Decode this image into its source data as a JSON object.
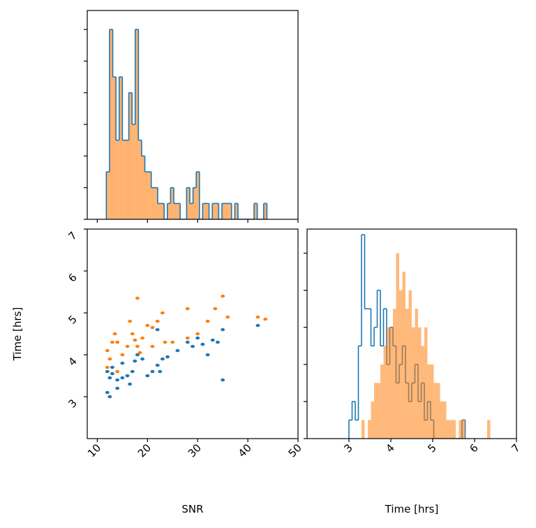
{
  "chart_data": [
    {
      "type": "histogram",
      "bins": [
        11.8,
        12.44,
        13.08,
        13.72,
        14.36,
        15.0,
        15.64,
        16.28,
        16.92,
        17.56,
        18.2,
        18.84,
        19.48,
        20.12,
        20.76,
        21.4,
        22.04,
        22.68,
        23.32,
        23.96,
        24.6,
        25.24,
        25.88,
        26.52,
        27.16,
        27.8,
        28.44,
        29.08,
        29.72,
        30.36,
        31.0,
        31.64,
        32.28,
        32.92,
        33.56,
        34.2,
        34.84,
        35.48,
        36.12,
        36.76,
        37.4,
        38.04,
        38.68,
        39.32,
        39.96,
        40.6,
        41.24,
        41.88,
        42.52,
        43.16,
        43.8
      ],
      "series": [
        {
          "color": "#ffb26e",
          "edgecolor": "#1f77b4",
          "values": [
            3,
            12,
            9,
            5,
            9,
            5,
            5,
            8,
            6,
            12,
            5,
            4,
            3,
            3,
            2,
            2,
            1,
            1,
            0,
            1,
            2,
            1,
            1,
            0,
            0,
            2,
            1,
            2,
            3,
            0,
            1,
            1,
            0,
            1,
            1,
            0,
            1,
            1,
            1,
            0,
            1,
            0,
            0,
            0,
            0,
            0,
            1,
            0,
            0,
            1
          ]
        }
      ],
      "xlim": [
        8,
        50
      ],
      "xticks": [
        10,
        20,
        30,
        40,
        50
      ],
      "x_tick_labels": false,
      "ylim": [
        0,
        13.2
      ],
      "yticks": [
        0,
        2,
        4,
        6,
        8,
        10,
        12
      ],
      "y_tick_labels": false
    },
    {
      "type": "scatter",
      "xlabel": "SNR",
      "ylabel": "Time [hrs]",
      "series": [
        {
          "color": "#1f77b4",
          "x": [
            12,
            12.5,
            13,
            14,
            15,
            16,
            17,
            17.5,
            18,
            19,
            20,
            21,
            22,
            22.5,
            23,
            24,
            26,
            28,
            29,
            30,
            31,
            32,
            33,
            35,
            35,
            42,
            12,
            12.5,
            14,
            16.5,
            15,
            13,
            22,
            34
          ],
          "values": [
            3.6,
            3.45,
            3.55,
            3.4,
            3.45,
            3.5,
            3.6,
            3.85,
            4.0,
            3.9,
            3.5,
            3.6,
            3.75,
            3.6,
            3.9,
            3.95,
            4.1,
            4.3,
            4.2,
            4.4,
            4.25,
            4.0,
            4.35,
            4.6,
            3.4,
            4.7,
            3.1,
            3.0,
            3.2,
            3.3,
            3.8,
            3.7,
            4.6,
            4.3
          ]
        },
        {
          "color": "#ff7f0e",
          "x": [
            12,
            12.5,
            13,
            13.5,
            14,
            15,
            16,
            17,
            18,
            17.5,
            18.5,
            19,
            20,
            21,
            22,
            23,
            23.5,
            18,
            16.5,
            21,
            28,
            28,
            30,
            32,
            33.5,
            35,
            36,
            42,
            43.5,
            12,
            14,
            25
          ],
          "values": [
            4.1,
            3.9,
            4.3,
            4.5,
            4.3,
            4.0,
            4.2,
            4.5,
            4.2,
            4.35,
            4.05,
            4.4,
            4.7,
            4.65,
            4.8,
            5.0,
            4.3,
            5.35,
            4.8,
            4.2,
            4.4,
            5.1,
            4.5,
            4.8,
            5.1,
            5.4,
            4.9,
            4.9,
            4.85,
            3.7,
            3.6,
            4.3
          ]
        }
      ],
      "xlim": [
        8,
        50
      ],
      "xticks": [
        10,
        20,
        30,
        40,
        50
      ],
      "x_tick_labels": true,
      "ylim": [
        2,
        7
      ],
      "yticks": [
        3,
        4,
        5,
        6,
        7
      ],
      "y_tick_labels": true
    },
    {
      "type": "histogram",
      "xlabel": "Time [hrs]",
      "series": [
        {
          "edgecolor": "#1f77b4",
          "bins": [
            3.0,
            3.075,
            3.15,
            3.225,
            3.3,
            3.375,
            3.45,
            3.525,
            3.6,
            3.675,
            3.75,
            3.825,
            3.9,
            3.975,
            4.05,
            4.125,
            4.2,
            4.275,
            4.35,
            4.425,
            4.5,
            4.575,
            4.65,
            4.725,
            4.8,
            4.875,
            4.95,
            5.025,
            5.1,
            5.175,
            5.25,
            5.325,
            5.4,
            5.475,
            5.55,
            5.625,
            5.7,
            5.775
          ],
          "values": [
            1,
            2,
            1,
            5,
            11,
            7,
            7,
            5,
            6,
            8,
            5,
            7,
            4,
            6,
            5,
            3,
            4,
            5,
            3,
            2,
            3,
            4,
            2,
            3,
            1,
            2,
            1,
            0,
            0,
            0,
            0,
            0,
            0,
            0,
            0,
            0,
            1
          ]
        },
        {
          "color": "#ff7f0e",
          "alpha": 0.55,
          "bins": [
            3.3,
            3.375,
            3.45,
            3.525,
            3.6,
            3.675,
            3.75,
            3.825,
            3.9,
            3.975,
            4.05,
            4.125,
            4.2,
            4.275,
            4.35,
            4.425,
            4.5,
            4.575,
            4.65,
            4.725,
            4.8,
            4.875,
            4.95,
            5.025,
            5.1,
            5.175,
            5.25,
            5.325,
            5.4,
            5.475,
            5.55,
            5.625,
            5.7,
            5.775,
            5.85,
            5.925,
            6.0,
            6.075,
            6.15,
            6.225,
            6.3,
            6.375
          ],
          "values": [
            1,
            0,
            1,
            2,
            3,
            3,
            4,
            5,
            6,
            6,
            7,
            10,
            8,
            9,
            7,
            8,
            6,
            7,
            6,
            5,
            6,
            4,
            4,
            3,
            3,
            2,
            2,
            1,
            1,
            1,
            0,
            1,
            1,
            0,
            0,
            0,
            0,
            0,
            0,
            0,
            1
          ]
        }
      ],
      "xlim": [
        2,
        7
      ],
      "xticks": [
        3,
        4,
        5,
        6,
        7
      ],
      "x_tick_labels": true,
      "ylim": [
        0,
        11.3
      ],
      "yticks": [
        0,
        2,
        4,
        6,
        8,
        10
      ],
      "y_tick_labels": false
    }
  ]
}
